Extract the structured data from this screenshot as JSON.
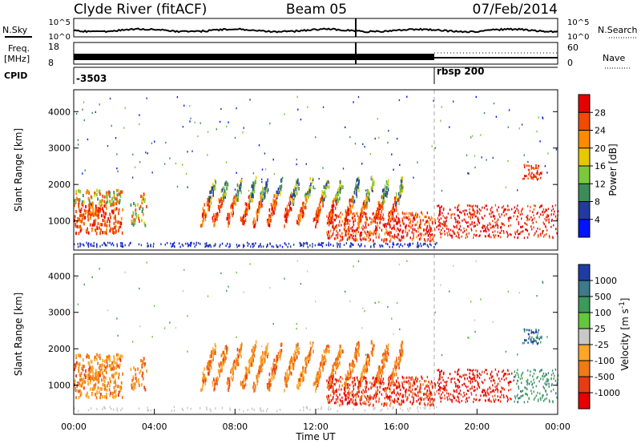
{
  "header": {
    "station": "Clyde River (fitACF)",
    "beam": "Beam 05",
    "date": "07/Feb/2014"
  },
  "labels": {
    "nsky": "N.Sky",
    "nsearch": "N.Search",
    "freq_top": "Freq.",
    "freq_unit": "[MHz]",
    "nave": "Nave",
    "cpid": "CPID",
    "cpid_first": "-3503",
    "cpid_second": "rbsp 200",
    "noise_ticks": [
      "10^5",
      "10^0"
    ],
    "freq_ticks": [
      "18",
      "8"
    ],
    "nave_ticks": [
      "60",
      "0"
    ]
  },
  "chart_data": [
    {
      "type": "heatmap",
      "name": "power",
      "ylabel": "Slant Range [km]",
      "y_ticks": [
        1000,
        2000,
        3000,
        4000
      ],
      "ylim": [
        200,
        4600
      ],
      "colorbar": {
        "label": "Power [dB]",
        "ticks": [
          "28",
          "24",
          "20",
          "16",
          "12",
          "8",
          "4"
        ],
        "colors": [
          "#e60000",
          "#f24a00",
          "#ff8a00",
          "#e6c800",
          "#7cc83c",
          "#3c8c5a",
          "#233a9e",
          "#0014ff"
        ]
      }
    },
    {
      "type": "heatmap",
      "name": "velocity",
      "ylabel": "Slant Range [km]",
      "y_ticks": [
        1000,
        2000,
        3000,
        4000
      ],
      "ylim": [
        200,
        4600
      ],
      "xlabel": "Time UT",
      "x_ticks": [
        "00:00",
        "04:00",
        "08:00",
        "12:00",
        "16:00",
        "20:00",
        "00:00"
      ],
      "xlim": [
        0,
        24
      ],
      "colorbar": {
        "label": "Velocity [m s^-1]",
        "ticks": [
          "1000",
          "500",
          "100",
          "25",
          "-25",
          "-100",
          "-500",
          "-1000"
        ],
        "colors": [
          "#1e3ca8",
          "#3c7a8c",
          "#3c9a5a",
          "#64c83c",
          "#c8c8c8",
          "#ffa628",
          "#f07a14",
          "#e63c14",
          "#e60000"
        ]
      }
    }
  ],
  "colors": {
    "axis": "#000000",
    "marker": "#aaaaaa"
  }
}
